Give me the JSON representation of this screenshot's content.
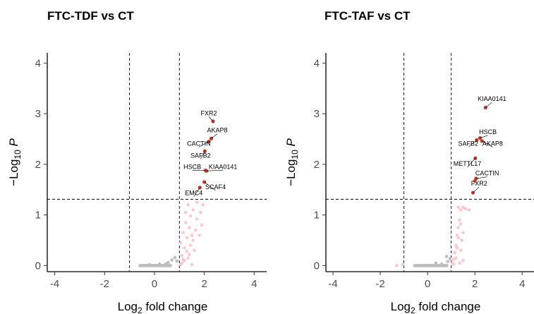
{
  "chart_data": [
    {
      "type": "scatter",
      "title": "FTC-TDF vs CT",
      "xlabel_base": "Log",
      "xlabel_sub": "2",
      "xlabel_rest": " fold change",
      "ylabel_prefix": "−Log",
      "ylabel_sub": "10",
      "ylabel_var": "P",
      "xlim": [
        -4.3,
        4.5
      ],
      "ylim": [
        -0.12,
        4.2
      ],
      "xticks": [
        -4,
        -2,
        0,
        2,
        4
      ],
      "xtick_labels": [
        "-4",
        "-2",
        "0",
        "2",
        "4"
      ],
      "yticks": [
        0,
        1,
        2,
        3,
        4
      ],
      "ytick_labels": [
        "0",
        "1",
        "2",
        "3",
        "4"
      ],
      "fc_cutoffs": [
        -1,
        1
      ],
      "p_cutoff": 1.31,
      "colors": {
        "ns": "#bdbdbd",
        "fc_only": "#ffc0cb",
        "significant": "#c0392b"
      },
      "grey_band": {
        "x_from": -0.58,
        "x_to": 0.68,
        "y": 0.0
      },
      "ns_points": [
        [
          0.55,
          0.06
        ],
        [
          0.7,
          0.11
        ],
        [
          0.82,
          0.16
        ],
        [
          0.45,
          0.03
        ],
        [
          -0.2,
          0.02
        ],
        [
          0.2,
          0.03
        ],
        [
          0.9,
          0.09
        ]
      ],
      "fc_points": [
        [
          1.05,
          0.45
        ],
        [
          1.1,
          0.2
        ],
        [
          1.15,
          0.65
        ],
        [
          1.2,
          0.35
        ],
        [
          1.25,
          0.85
        ],
        [
          1.3,
          0.55
        ],
        [
          1.35,
          0.15
        ],
        [
          1.4,
          0.75
        ],
        [
          1.45,
          0.4
        ],
        [
          1.5,
          0.6
        ],
        [
          1.1,
          0.05
        ],
        [
          1.2,
          0.1
        ],
        [
          1.3,
          0.28
        ],
        [
          1.4,
          0.22
        ],
        [
          1.55,
          0.5
        ],
        [
          1.6,
          0.3
        ],
        [
          1.65,
          0.7
        ],
        [
          1.7,
          0.92
        ],
        [
          1.25,
          1.05
        ],
        [
          1.35,
          1.2
        ],
        [
          1.45,
          0.98
        ],
        [
          1.55,
          1.1
        ],
        [
          1.7,
          1.25
        ],
        [
          1.8,
          0.6
        ],
        [
          1.85,
          1.05
        ],
        [
          1.95,
          1.2
        ],
        [
          1.9,
          0.8
        ],
        [
          1.05,
          0.02
        ],
        [
          1.15,
          0.12
        ],
        [
          1.5,
          0.02
        ]
      ],
      "significant": [
        {
          "gene": "FXR2",
          "x": 2.35,
          "y": 2.85,
          "lx": 2.18,
          "ly": 2.97
        },
        {
          "gene": "AKAP8",
          "x": 2.28,
          "y": 2.51,
          "lx": 2.52,
          "ly": 2.63
        },
        {
          "gene": "CACTIN",
          "x": 2.18,
          "y": 2.45,
          "lx": 1.78,
          "ly": 2.37
        },
        {
          "gene": "SAFB2",
          "x": 2.02,
          "y": 2.26,
          "lx": 1.85,
          "ly": 2.13
        },
        {
          "gene": "HSCB",
          "x": 2.05,
          "y": 1.88,
          "lx": 1.52,
          "ly": 1.91
        },
        {
          "gene": "KIAA0141",
          "x": 2.09,
          "y": 1.87,
          "lx": 2.75,
          "ly": 1.91
        },
        {
          "gene": "SCAF4",
          "x": 2.0,
          "y": 1.65,
          "lx": 2.45,
          "ly": 1.51
        },
        {
          "gene": "EMC4",
          "x": 1.82,
          "y": 1.54,
          "lx": 1.58,
          "ly": 1.39
        }
      ]
    },
    {
      "type": "scatter",
      "title": "FTC-TAF vs CT",
      "xlabel_base": "Log",
      "xlabel_sub": "2",
      "xlabel_rest": " fold change",
      "ylabel_prefix": "−Log",
      "ylabel_sub": "10",
      "ylabel_var": "P",
      "xlim": [
        -4.3,
        4.5
      ],
      "ylim": [
        -0.12,
        4.2
      ],
      "xticks": [
        -4,
        -2,
        0,
        2,
        4
      ],
      "xtick_labels": [
        "-4",
        "-2",
        "0",
        "2",
        "4"
      ],
      "yticks": [
        0,
        1,
        2,
        3,
        4
      ],
      "ytick_labels": [
        "0",
        "1",
        "2",
        "3",
        "4"
      ],
      "fc_cutoffs": [
        -1,
        1
      ],
      "p_cutoff": 1.31,
      "colors": {
        "ns": "#bdbdbd",
        "fc_only": "#ffc0cb",
        "significant": "#c0392b"
      },
      "grey_band": {
        "x_from": -0.55,
        "x_to": 0.85,
        "y": 0.0
      },
      "ns_points": [
        [
          0.35,
          0.05
        ],
        [
          0.85,
          0.08
        ],
        [
          0.8,
          0.18
        ],
        [
          0.95,
          0.14
        ],
        [
          0.6,
          0.03
        ]
      ],
      "fc_points": [
        [
          -1.3,
          0.0
        ],
        [
          -1.05,
          0.02
        ],
        [
          1.05,
          0.05
        ],
        [
          1.1,
          0.12
        ],
        [
          1.15,
          0.25
        ],
        [
          1.2,
          0.4
        ],
        [
          1.25,
          0.6
        ],
        [
          1.3,
          0.75
        ],
        [
          1.35,
          0.9
        ],
        [
          1.4,
          0.3
        ],
        [
          1.45,
          0.5
        ],
        [
          1.5,
          0.65
        ],
        [
          1.3,
          1.15
        ],
        [
          1.4,
          1.1
        ],
        [
          1.5,
          1.15
        ],
        [
          1.6,
          1.12
        ],
        [
          1.75,
          1.1
        ],
        [
          1.1,
          0.02
        ],
        [
          1.2,
          0.15
        ],
        [
          1.35,
          0.05
        ],
        [
          1.25,
          0.35
        ],
        [
          1.4,
          0.82
        ],
        [
          1.3,
          0.55
        ],
        [
          1.5,
          0.1
        ]
      ],
      "significant": [
        {
          "gene": "KIAA0141",
          "x": 2.45,
          "y": 3.12,
          "lx": 2.72,
          "ly": 3.25
        },
        {
          "gene": "HSCB",
          "x": 2.22,
          "y": 2.52,
          "lx": 2.55,
          "ly": 2.6
        },
        {
          "gene": "SAFB2",
          "x": 2.08,
          "y": 2.48,
          "lx": 1.72,
          "ly": 2.37
        },
        {
          "gene": "AKAP8",
          "x": 2.3,
          "y": 2.46,
          "lx": 2.75,
          "ly": 2.37
        },
        {
          "gene": "METTL17",
          "x": 2.02,
          "y": 2.12,
          "lx": 1.68,
          "ly": 1.97
        },
        {
          "gene": "CACTIN",
          "x": 2.05,
          "y": 1.72,
          "lx": 2.52,
          "ly": 1.78
        },
        {
          "gene": "FXR2",
          "x": 1.92,
          "y": 1.44,
          "lx": 2.18,
          "ly": 1.58
        },
        {
          "gene": "CACTIN_pt",
          "x": 2.0,
          "y": 1.67,
          "lx": null,
          "ly": null
        }
      ]
    }
  ]
}
